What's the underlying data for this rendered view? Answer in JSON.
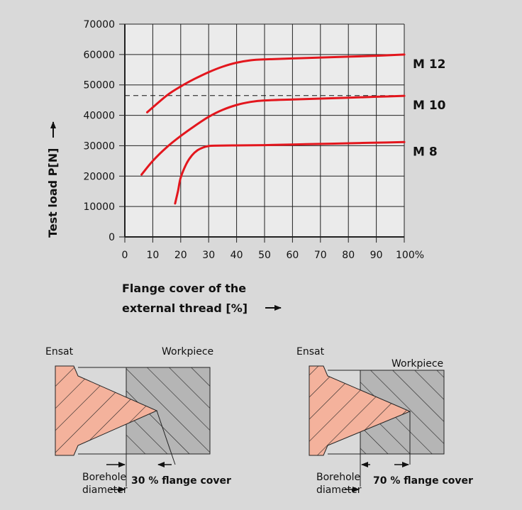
{
  "chart_data": {
    "type": "line",
    "xlabel_line1": "Flange cover of the",
    "xlabel_line2": "external thread  [%]",
    "ylabel": "Test load   P[N]",
    "x_ticks": [
      "0",
      "10",
      "20",
      "30",
      "40",
      "50",
      "60",
      "70",
      "80",
      "90",
      "100%"
    ],
    "y_ticks": [
      "0",
      "10000",
      "20000",
      "30000",
      "40000",
      "50000",
      "60000",
      "70000"
    ],
    "xlim": [
      0,
      100
    ],
    "ylim": [
      0,
      70000
    ],
    "grid": true,
    "curve_color": "#e3161d",
    "series": [
      {
        "name": "M 12",
        "x": [
          8,
          15,
          20,
          25,
          30,
          35,
          40,
          45,
          50,
          60,
          70,
          80,
          90,
          100
        ],
        "y": [
          41000,
          46500,
          49500,
          52000,
          54200,
          56000,
          57300,
          58100,
          58400,
          58700,
          59000,
          59300,
          59600,
          60000
        ]
      },
      {
        "name": "M 10",
        "x": [
          6,
          10,
          15,
          20,
          25,
          30,
          35,
          40,
          45,
          50,
          60,
          70,
          80,
          90,
          100
        ],
        "y": [
          20500,
          25000,
          29500,
          33200,
          36500,
          39500,
          41800,
          43400,
          44400,
          44900,
          45200,
          45500,
          45800,
          46100,
          46400
        ]
      },
      {
        "name": "M 8",
        "x": [
          18,
          19,
          20,
          22,
          24,
          26,
          28,
          30,
          32,
          40,
          50,
          60,
          70,
          80,
          90,
          100
        ],
        "y": [
          11000,
          15000,
          19500,
          24000,
          26800,
          28500,
          29400,
          29900,
          30000,
          30100,
          30200,
          30400,
          30600,
          30800,
          31000,
          31200
        ]
      }
    ],
    "reference_line": {
      "y": 46500
    }
  },
  "diagram_left": {
    "ensat_label": "Ensat",
    "workpiece_label": "Workpiece",
    "borehole_line1": "Borehole",
    "borehole_line2": "diameter",
    "flange_label": "30 % flange cover"
  },
  "diagram_right": {
    "ensat_label": "Ensat",
    "workpiece_label": "Workpiece",
    "borehole_line1": "Borehole",
    "borehole_line2": "diameter",
    "flange_label": "70 % flange cover"
  },
  "colors": {
    "background": "#d9d9d9",
    "plot_bg": "#ebebeb",
    "insert_fill": "#f4b29c",
    "workpiece_fill": "#b5b5b5"
  }
}
